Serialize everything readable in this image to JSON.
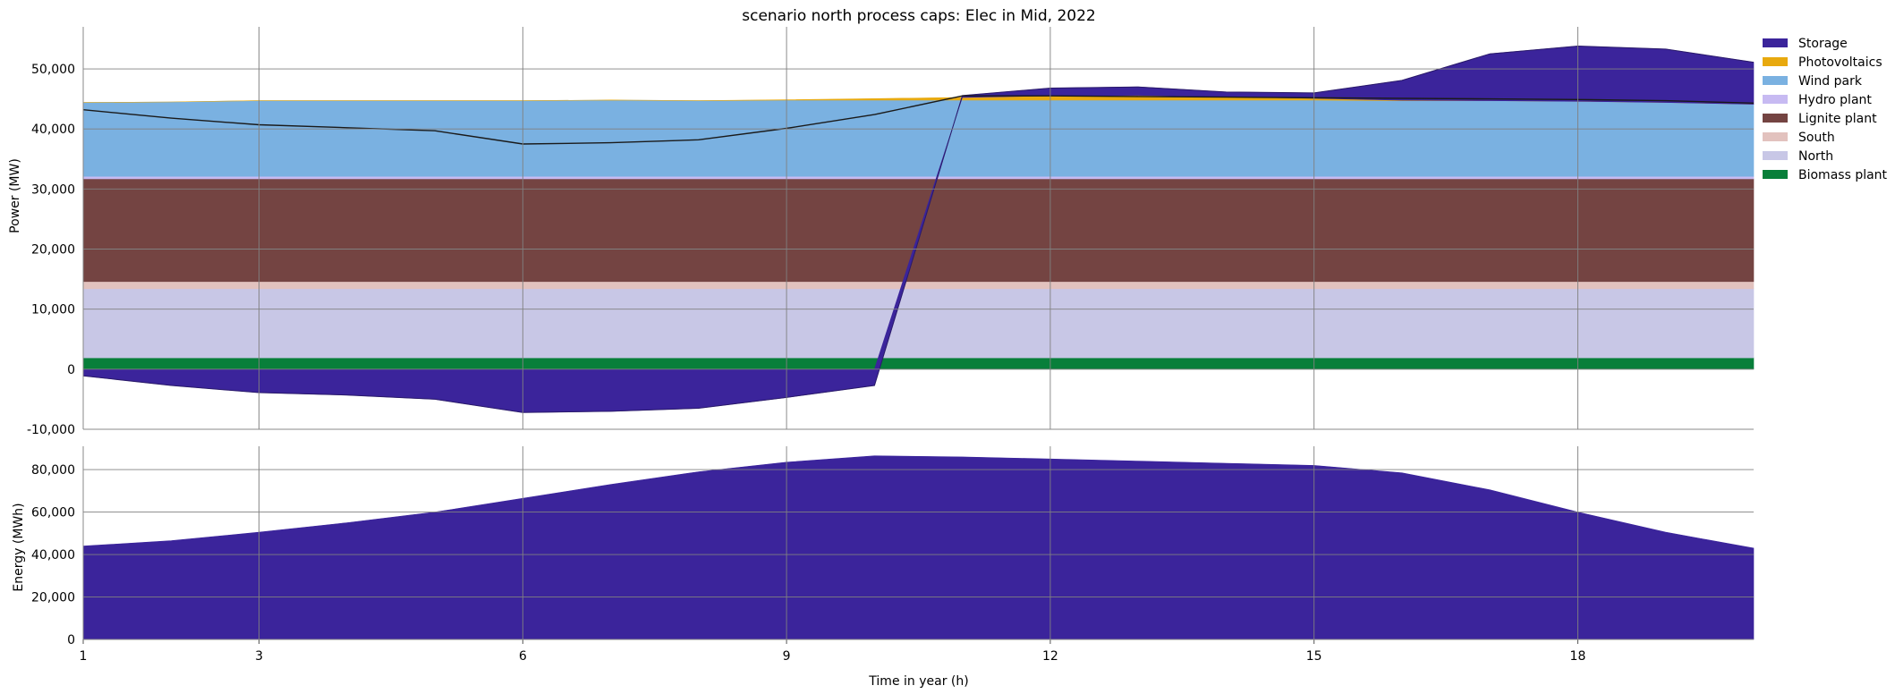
{
  "chart_data": [
    {
      "type": "area",
      "title": "scenario north process caps: Elec in Mid, 2022",
      "xlabel": "",
      "ylabel": "Power (MW)",
      "x": [
        1,
        2,
        3,
        4,
        5,
        6,
        7,
        8,
        9,
        10,
        11,
        12,
        13,
        14,
        15,
        16,
        17,
        18,
        19,
        20
      ],
      "xlim": [
        1,
        20
      ],
      "ylim": [
        -10000,
        57000
      ],
      "yticks": [
        -10000,
        0,
        10000,
        20000,
        30000,
        40000,
        50000
      ],
      "ytick_labels": [
        "-10,000",
        "0",
        "10,000",
        "20,000",
        "30,000",
        "40,000",
        "50,000"
      ],
      "grid": true,
      "legend_position": "upper right, outside plot",
      "stack_order": [
        "Biomass plant",
        "North",
        "South",
        "Lignite plant",
        "Hydro plant",
        "Wind park",
        "Photovoltaics",
        "Storage"
      ],
      "series": [
        {
          "name": "Storage",
          "color": "#3b249b",
          "values": [
            -1100,
            -2700,
            -3900,
            -4300,
            -5000,
            -7200,
            -7000,
            -6500,
            -4700,
            -2700,
            300,
            1300,
            1400,
            800,
            900,
            3300,
            7800,
            9200,
            8900,
            7000
          ]
        },
        {
          "name": "Photovoltaics",
          "color": "#e8a90e",
          "values": [
            0,
            0,
            0,
            0,
            0,
            0,
            0,
            0,
            50,
            250,
            450,
            700,
            800,
            550,
            300,
            80,
            0,
            0,
            0,
            0
          ]
        },
        {
          "name": "Wind park",
          "color": "#7ab1e1",
          "values": [
            12300,
            12400,
            12600,
            12600,
            12600,
            12600,
            12700,
            12600,
            12700,
            12700,
            12700,
            12700,
            12700,
            12700,
            12700,
            12600,
            12600,
            12500,
            12300,
            12000
          ]
        },
        {
          "name": "Hydro plant",
          "color": "#c7baf2",
          "values": [
            400,
            400,
            400,
            400,
            400,
            400,
            400,
            400,
            400,
            400,
            400,
            400,
            400,
            400,
            400,
            400,
            400,
            400,
            400,
            400
          ]
        },
        {
          "name": "Lignite plant",
          "color": "#744442",
          "values": [
            17100,
            17100,
            17100,
            17100,
            17100,
            17100,
            17100,
            17100,
            17100,
            17100,
            17100,
            17100,
            17100,
            17100,
            17100,
            17100,
            17100,
            17100,
            17100,
            17100
          ]
        },
        {
          "name": "South",
          "color": "#e2c2be",
          "values": [
            1200,
            1200,
            1200,
            1200,
            1200,
            1200,
            1200,
            1200,
            1200,
            1200,
            1200,
            1200,
            1200,
            1200,
            1200,
            1200,
            1200,
            1200,
            1200,
            1200
          ]
        },
        {
          "name": "North",
          "color": "#c8c7e6",
          "values": [
            11500,
            11500,
            11500,
            11500,
            11500,
            11500,
            11500,
            11500,
            11500,
            11500,
            11500,
            11500,
            11500,
            11500,
            11500,
            11500,
            11500,
            11500,
            11500,
            11500
          ]
        },
        {
          "name": "Biomass plant",
          "color": "#087f3a",
          "values": [
            1900,
            1900,
            1900,
            1900,
            1900,
            1900,
            1900,
            1900,
            1900,
            1900,
            1900,
            1900,
            1900,
            1900,
            1900,
            1900,
            1900,
            1900,
            1900,
            1900
          ]
        }
      ],
      "demand_line": {
        "color": "#1a1a1a",
        "values": [
          43200,
          41800,
          40700,
          40200,
          39700,
          37500,
          37700,
          38200,
          40100,
          42400,
          45500,
          45500,
          45400,
          45300,
          45200,
          45100,
          45000,
          44900,
          44700,
          44300
        ]
      }
    },
    {
      "type": "area",
      "title": "",
      "xlabel": "Time in year (h)",
      "ylabel": "Energy (MWh)",
      "x": [
        1,
        2,
        3,
        4,
        5,
        6,
        7,
        8,
        9,
        10,
        11,
        12,
        13,
        14,
        15,
        16,
        17,
        18,
        19,
        20
      ],
      "xlim": [
        1,
        20
      ],
      "ylim": [
        0,
        91000
      ],
      "yticks": [
        0,
        20000,
        40000,
        60000,
        80000
      ],
      "ytick_labels": [
        "0",
        "20,000",
        "40,000",
        "60,000",
        "80,000"
      ],
      "xticks": [
        1,
        3,
        6,
        9,
        12,
        15,
        18
      ],
      "xtick_labels": [
        "1",
        "3",
        "6",
        "9",
        "12",
        "15",
        "18"
      ],
      "grid": true,
      "series": [
        {
          "name": "",
          "color": "#3b249b",
          "values": [
            44000,
            46500,
            50500,
            55000,
            60000,
            66500,
            73000,
            79000,
            83500,
            86500,
            86000,
            85000,
            84000,
            83000,
            82000,
            78500,
            70500,
            60000,
            50500,
            43000
          ]
        }
      ]
    }
  ]
}
